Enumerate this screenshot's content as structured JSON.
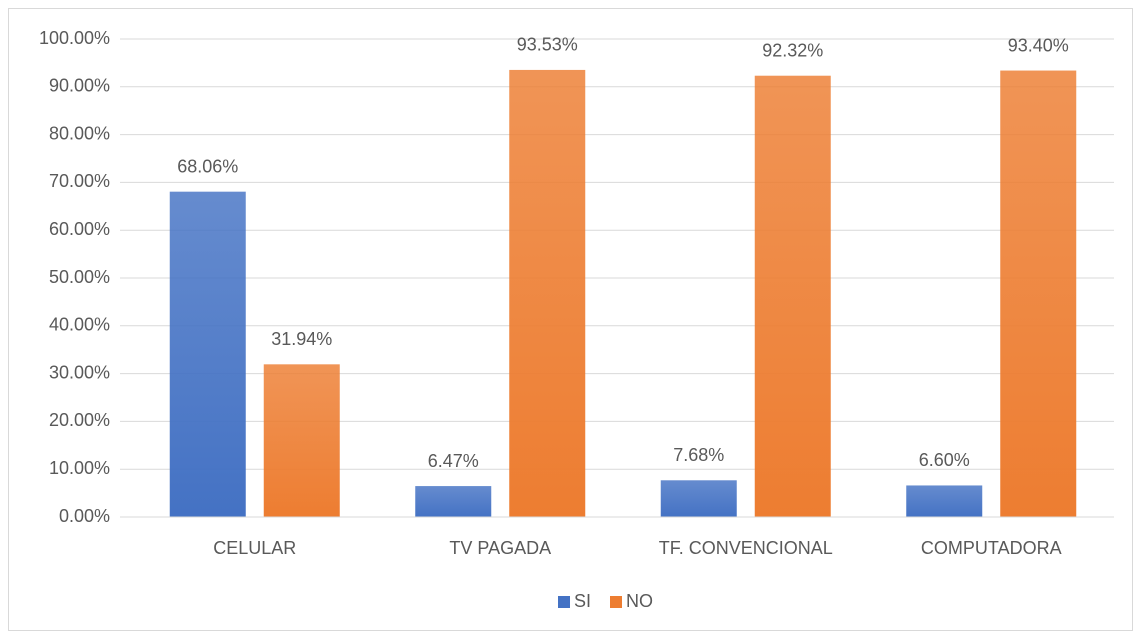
{
  "chart_data": {
    "type": "bar",
    "categories": [
      "CELULAR",
      "TV PAGADA",
      "TF. CONVENCIONAL",
      "COMPUTADORA"
    ],
    "series": [
      {
        "name": "SI",
        "color": "#4472c4",
        "values": [
          68.06,
          6.47,
          7.68,
          6.6
        ],
        "value_labels": [
          "68.06%",
          "6.47%",
          "7.68%",
          "6.60%"
        ]
      },
      {
        "name": "NO",
        "color": "#ed7d31",
        "values": [
          31.94,
          93.53,
          92.32,
          93.4
        ],
        "value_labels": [
          "31.94%",
          "93.53%",
          "92.32%",
          "93.40%"
        ]
      }
    ],
    "ylim": [
      0,
      100
    ],
    "yticks": [
      {
        "value": 0,
        "label": "0.00%"
      },
      {
        "value": 10,
        "label": "10.00%"
      },
      {
        "value": 20,
        "label": "20.00%"
      },
      {
        "value": 30,
        "label": "30.00%"
      },
      {
        "value": 40,
        "label": "40.00%"
      },
      {
        "value": 50,
        "label": "50.00%"
      },
      {
        "value": 60,
        "label": "60.00%"
      },
      {
        "value": 70,
        "label": "70.00%"
      },
      {
        "value": 80,
        "label": "80.00%"
      },
      {
        "value": 90,
        "label": "90.00%"
      },
      {
        "value": 100,
        "label": "100.00%"
      }
    ],
    "grid": true,
    "legend": "bottom"
  }
}
